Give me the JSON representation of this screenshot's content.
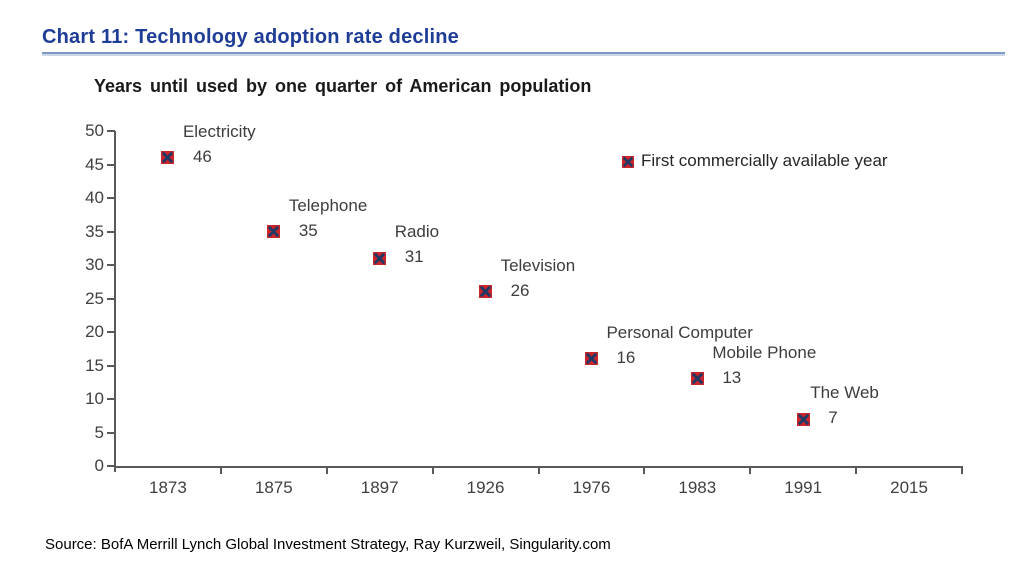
{
  "page": {
    "title": "Chart 11: Technology adoption rate decline",
    "source": "Source: BofA Merrill Lynch Global  Investment Strategy, Ray Kurzweil, Singularity.com"
  },
  "chart_data": {
    "type": "scatter",
    "title": "Years until used by one quarter of American population",
    "legend": "First commercially available year",
    "legend_position": "inside-top-right",
    "xlabel": "",
    "ylabel": "",
    "ylim": [
      0,
      50
    ],
    "y_tick_step": 5,
    "y_ticks": [
      50,
      45,
      40,
      35,
      30,
      25,
      20,
      15,
      10,
      5,
      0
    ],
    "x_labels": [
      "1873",
      "1875",
      "1897",
      "1926",
      "1976",
      "1983",
      "1991",
      "2015"
    ],
    "grid": false,
    "marker_style": "red-square-with-navy-x",
    "points": [
      {
        "label": "Electricity",
        "x": "1873",
        "value": 46
      },
      {
        "label": "Telephone",
        "x": "1875",
        "value": 35
      },
      {
        "label": "Radio",
        "x": "1897",
        "value": 31
      },
      {
        "label": "Television",
        "x": "1926",
        "value": 26
      },
      {
        "label": "Personal Computer",
        "x": "1976",
        "value": 16
      },
      {
        "label": "Mobile Phone",
        "x": "1983",
        "value": 13
      },
      {
        "label": "The Web",
        "x": "1991",
        "value": 7
      }
    ],
    "colors": {
      "title_blue": "#1e3d96",
      "underline_blue": "#7d99c7",
      "axis": "#595959",
      "tick_text": "#404040",
      "annotation_text": "#3d3d3d",
      "marker_fill": "#c9252b",
      "marker_cross": "#1f3864"
    }
  }
}
